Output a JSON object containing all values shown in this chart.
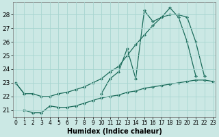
{
  "xlabel": "Humidex (Indice chaleur)",
  "bg_color": "#cbe8e4",
  "grid_color": "#a8d5d0",
  "line_color": "#1a6b5a",
  "x_values": [
    0,
    1,
    2,
    3,
    4,
    5,
    6,
    7,
    8,
    9,
    10,
    11,
    12,
    13,
    14,
    15,
    16,
    17,
    18,
    19,
    20,
    21,
    22,
    23
  ],
  "line_spiky": [
    23.0,
    22.2,
    null,
    null,
    null,
    null,
    null,
    null,
    null,
    null,
    22.2,
    23.3,
    23.8,
    25.5,
    23.3,
    28.3,
    27.5,
    27.8,
    28.5,
    27.8,
    26.0,
    23.5,
    null,
    null
  ],
  "line_smooth": [
    23.0,
    22.2,
    22.2,
    22.0,
    22.0,
    22.2,
    22.3,
    22.5,
    22.7,
    23.0,
    23.3,
    23.8,
    24.2,
    25.0,
    25.8,
    26.5,
    27.2,
    27.8,
    28.0,
    28.0,
    27.8,
    26.0,
    23.5,
    null
  ],
  "line_flat": [
    null,
    21.0,
    20.8,
    20.8,
    21.3,
    21.2,
    21.2,
    21.3,
    21.5,
    21.7,
    21.9,
    22.0,
    22.1,
    22.3,
    22.4,
    22.6,
    22.7,
    22.8,
    22.9,
    23.0,
    23.1,
    23.2,
    23.2,
    23.1
  ],
  "ylim": [
    20.5,
    28.9
  ],
  "yticks": [
    21,
    22,
    23,
    24,
    25,
    26,
    27,
    28
  ],
  "xlim": [
    -0.3,
    23.3
  ],
  "figsize": [
    3.2,
    2.0
  ],
  "dpi": 100,
  "lw": 0.9,
  "ms": 2.5
}
